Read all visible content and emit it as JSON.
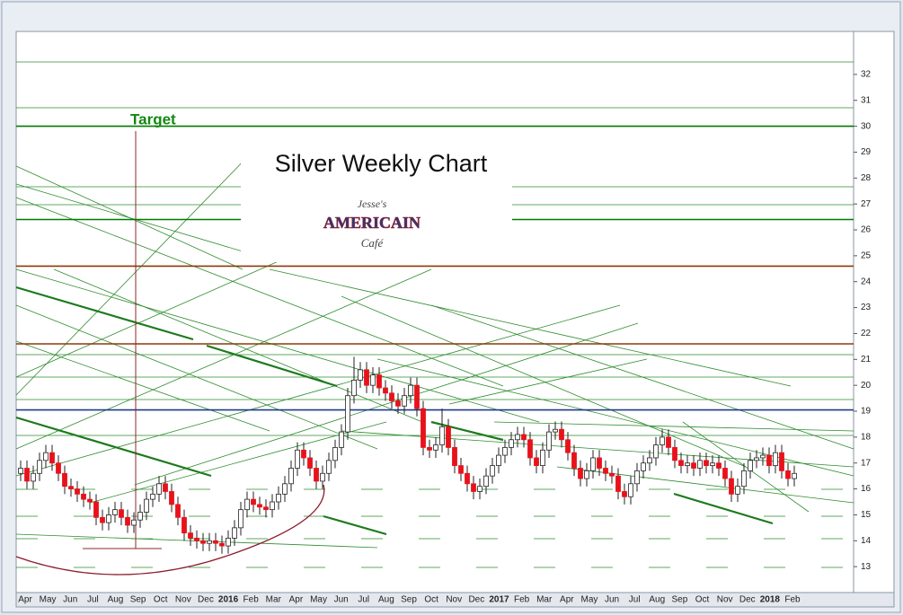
{
  "chart_data": {
    "type": "candlestick",
    "title": "Silver Weekly Chart",
    "logo_text": [
      "Jesse's",
      "AMERICAIN",
      "Café"
    ],
    "annotation": "Target",
    "categories": [
      "Apr",
      "May",
      "Jun",
      "Jul",
      "Aug",
      "Sep",
      "Oct",
      "Nov",
      "Dec",
      "2016",
      "Feb",
      "Mar",
      "Apr",
      "May",
      "Jun",
      "Jul",
      "Aug",
      "Sep",
      "Oct",
      "Nov",
      "Dec",
      "2017",
      "Feb",
      "Mar",
      "Apr",
      "May",
      "Jun",
      "Jul",
      "Aug",
      "Sep",
      "Oct",
      "Nov",
      "Dec",
      "2018",
      "Feb"
    ],
    "ylim": [
      12,
      33.66
    ],
    "yticks": [
      13,
      14,
      15,
      16,
      17,
      18,
      19,
      20,
      21,
      22,
      23,
      24,
      25,
      26,
      27,
      28,
      29,
      30,
      31,
      32
    ],
    "up_color": "#ffffff",
    "down_color": "#e8121b",
    "reference_lines": [
      {
        "value": 30,
        "color": "#007a00"
      },
      {
        "value": 26.4,
        "color": "#007a00"
      },
      {
        "value": 24.6,
        "color": "#8b3a0a"
      },
      {
        "value": 21.6,
        "color": "#8b3a0a"
      },
      {
        "value": 19.05,
        "color": "#1f3a8a"
      }
    ],
    "open": [
      16.6,
      16.8,
      16.3,
      16.6,
      17.1,
      17.4,
      17.0,
      16.6,
      16.1,
      16.0,
      15.8,
      15.6,
      15.5,
      14.9,
      14.7,
      15.0,
      15.2,
      14.9,
      14.6,
      14.8,
      15.1,
      15.6,
      15.8,
      16.2,
      15.9,
      15.4,
      14.9,
      14.3,
      14.1,
      14.0,
      13.9,
      14.0,
      13.9,
      13.8,
      14.1,
      14.5,
      15.2,
      15.6,
      15.4,
      15.3,
      15.2,
      15.5,
      15.8,
      16.2,
      16.8,
      17.5,
      17.2,
      16.8,
      16.3,
      16.6,
      17.1,
      17.6,
      18.2,
      19.6,
      20.2,
      20.6,
      20.0,
      20.4,
      19.9,
      19.7,
      19.4,
      19.2,
      19.6,
      20.0,
      19.1,
      17.6,
      17.5,
      17.7,
      18.4,
      17.6,
      16.9,
      16.6,
      16.2,
      15.9,
      16.1,
      16.5,
      16.9,
      17.3,
      17.6,
      17.9,
      18.1,
      17.9,
      17.2,
      16.9,
      17.5,
      18.2,
      18.3,
      17.9,
      17.4,
      16.8,
      16.4,
      16.7,
      17.2,
      16.8,
      16.6,
      16.5,
      15.9,
      15.7,
      16.2,
      16.7,
      17.0,
      17.2,
      17.7,
      18.0,
      17.6,
      17.1,
      16.9,
      17.0,
      16.8,
      17.1,
      16.9,
      17.0,
      16.8,
      16.4,
      15.8,
      16.1,
      16.7,
      17.1,
      17.2,
      17.3,
      16.9,
      17.4,
      16.7,
      16.4
    ],
    "high": [
      17.1,
      17.1,
      16.9,
      17.4,
      17.7,
      17.7,
      17.3,
      16.9,
      16.4,
      16.3,
      16.1,
      15.9,
      15.8,
      15.2,
      15.3,
      15.5,
      15.5,
      15.2,
      15.1,
      15.4,
      15.9,
      16.1,
      16.5,
      16.5,
      16.2,
      15.7,
      15.2,
      14.6,
      14.4,
      14.3,
      14.3,
      14.3,
      14.2,
      14.4,
      14.8,
      15.5,
      15.9,
      15.9,
      15.7,
      15.6,
      15.8,
      16.1,
      16.5,
      17.1,
      17.8,
      17.8,
      17.5,
      17.1,
      16.9,
      17.4,
      17.9,
      18.5,
      19.9,
      21.1,
      20.9,
      20.9,
      20.7,
      20.7,
      20.2,
      20.0,
      19.7,
      19.9,
      20.3,
      20.3,
      19.4,
      17.9,
      18.0,
      19.1,
      18.7,
      17.9,
      17.2,
      16.9,
      16.5,
      16.4,
      16.8,
      17.2,
      17.6,
      17.9,
      18.2,
      18.4,
      18.4,
      18.2,
      17.5,
      17.8,
      18.5,
      18.6,
      18.6,
      18.2,
      17.7,
      17.1,
      17.0,
      17.5,
      17.5,
      17.1,
      16.9,
      16.8,
      16.2,
      16.5,
      17.0,
      17.3,
      17.5,
      18.0,
      18.3,
      18.3,
      17.9,
      17.4,
      17.3,
      17.3,
      17.4,
      17.4,
      17.3,
      17.3,
      17.1,
      16.7,
      16.4,
      17.0,
      17.4,
      17.5,
      17.6,
      17.6,
      17.7,
      17.7,
      17.0,
      16.9
    ],
    "low": [
      16.3,
      16.0,
      16.0,
      16.3,
      16.8,
      16.7,
      16.3,
      15.8,
      15.7,
      15.5,
      15.3,
      15.2,
      14.6,
      14.4,
      14.4,
      14.7,
      14.6,
      14.3,
      14.3,
      14.5,
      14.8,
      15.3,
      15.5,
      15.6,
      15.1,
      14.6,
      14.0,
      13.8,
      13.7,
      13.6,
      13.6,
      13.6,
      13.5,
      13.5,
      13.8,
      14.2,
      14.9,
      15.1,
      15.0,
      14.9,
      14.9,
      15.2,
      15.5,
      15.9,
      16.5,
      16.9,
      16.5,
      16.0,
      16.0,
      16.3,
      16.8,
      17.3,
      17.9,
      19.3,
      19.9,
      19.7,
      19.7,
      19.6,
      19.4,
      19.1,
      18.9,
      18.9,
      19.3,
      18.8,
      17.3,
      17.2,
      17.2,
      17.4,
      17.3,
      16.6,
      16.3,
      15.9,
      15.6,
      15.6,
      15.8,
      16.2,
      16.6,
      17.0,
      17.3,
      17.6,
      17.6,
      16.9,
      16.6,
      16.6,
      17.2,
      17.9,
      17.6,
      17.1,
      16.5,
      16.1,
      16.1,
      16.4,
      16.5,
      16.3,
      16.2,
      15.6,
      15.4,
      15.4,
      15.9,
      16.4,
      16.7,
      16.9,
      17.4,
      17.3,
      16.8,
      16.6,
      16.6,
      16.5,
      16.5,
      16.6,
      16.6,
      16.5,
      16.1,
      15.5,
      15.5,
      15.8,
      16.4,
      16.8,
      16.9,
      16.6,
      16.6,
      16.4,
      16.1,
      16.1
    ],
    "close": [
      16.8,
      16.3,
      16.6,
      17.1,
      17.4,
      17.0,
      16.6,
      16.1,
      16.0,
      15.8,
      15.6,
      15.5,
      14.9,
      14.7,
      15.0,
      15.2,
      14.9,
      14.6,
      14.8,
      15.1,
      15.6,
      15.8,
      16.2,
      15.9,
      15.4,
      14.9,
      14.3,
      14.1,
      14.0,
      13.9,
      14.0,
      13.9,
      13.8,
      14.1,
      14.5,
      15.2,
      15.6,
      15.4,
      15.3,
      15.2,
      15.5,
      15.8,
      16.2,
      16.8,
      17.5,
      17.2,
      16.8,
      16.3,
      16.6,
      17.1,
      17.6,
      18.2,
      19.6,
      20.2,
      20.6,
      20.0,
      20.4,
      19.9,
      19.7,
      19.4,
      19.2,
      19.6,
      20.0,
      19.1,
      17.6,
      17.5,
      17.7,
      18.4,
      17.6,
      16.9,
      16.6,
      16.2,
      15.9,
      16.1,
      16.5,
      16.9,
      17.3,
      17.6,
      17.9,
      18.1,
      17.9,
      17.2,
      16.9,
      17.5,
      18.2,
      18.3,
      17.9,
      17.4,
      16.8,
      16.4,
      16.7,
      17.2,
      16.8,
      16.6,
      16.5,
      15.9,
      15.7,
      16.2,
      16.7,
      17.0,
      17.2,
      17.7,
      18.0,
      17.6,
      17.1,
      16.9,
      17.0,
      16.8,
      17.1,
      16.9,
      17.0,
      16.8,
      16.4,
      15.8,
      16.1,
      16.7,
      17.1,
      17.2,
      17.3,
      16.9,
      17.4,
      16.7,
      16.4,
      16.6
    ]
  }
}
